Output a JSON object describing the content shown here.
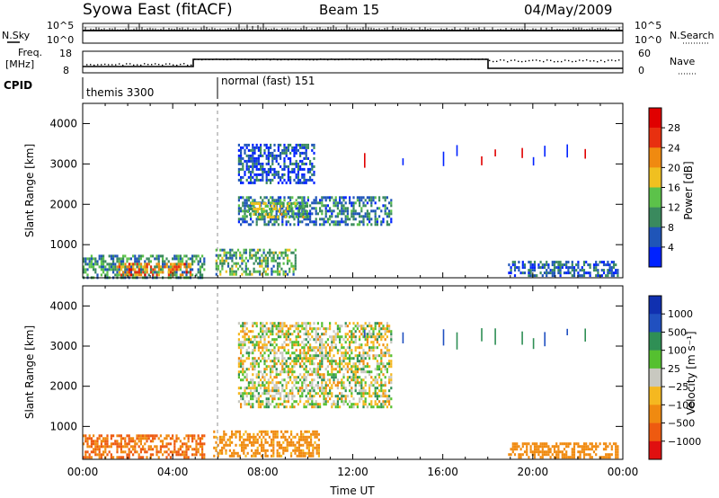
{
  "header": {
    "station": "Syowa East (fitACF)",
    "beam": "Beam 15",
    "date": "04/May/2009"
  },
  "noise_panel": {
    "left_label": "N.Sky",
    "right_label": "N.Search",
    "left_ticks": [
      "10^5",
      "10^0"
    ],
    "right_ticks": [
      "10^5",
      "10^0"
    ]
  },
  "freq_panel": {
    "left_label_1": "Freq.",
    "left_label_2": "[MHz]",
    "left_ticks": [
      "18",
      "8"
    ],
    "right_label": "Nave",
    "right_ticks": [
      "60",
      "0"
    ]
  },
  "cpid": {
    "label": "CPID",
    "segments": [
      {
        "name": "themis 3300",
        "start_hour": 0,
        "end_hour": 6
      },
      {
        "name": "normal (fast) 151",
        "start_hour": 6,
        "end_hour": 24
      }
    ]
  },
  "colors": {
    "power_scale": [
      "#0022ff",
      "#1f55b8",
      "#3a8a5e",
      "#5cc24a",
      "#f0c020",
      "#f08a10",
      "#e83010",
      "#e00000"
    ],
    "velocity_scale": [
      "#e01010",
      "#ee5a10",
      "#f08a10",
      "#f5b820",
      "#c8c8c0",
      "#55c030",
      "#2f8f55",
      "#2050c0",
      "#1030b0"
    ]
  },
  "chart_data": [
    {
      "type": "heatmap",
      "name": "power",
      "ylabel": "Slant Range [km]",
      "yticks": [
        "1000",
        "2000",
        "3000",
        "4000"
      ],
      "ylim": [
        180,
        4500
      ],
      "xticks": [
        "00:00",
        "04:00",
        "08:00",
        "12:00",
        "16:00",
        "20:00",
        "00:00"
      ],
      "xlim": [
        0,
        24
      ],
      "colorbar": {
        "label": "Power [dB]",
        "ticks": [
          "4",
          "8",
          "12",
          "16",
          "20",
          "24",
          "28"
        ],
        "range": [
          0,
          30
        ]
      },
      "regions": [
        {
          "x": [
            0.0,
            5.4
          ],
          "y": [
            200,
            750
          ],
          "power": 9
        },
        {
          "x": [
            1.5,
            4.8
          ],
          "y": [
            250,
            550
          ],
          "power": 22
        },
        {
          "x": [
            5.9,
            9.5
          ],
          "y": [
            250,
            900
          ],
          "power": 11
        },
        {
          "x": [
            6.9,
            10.3
          ],
          "y": [
            2500,
            3500
          ],
          "power": 5
        },
        {
          "x": [
            6.9,
            13.7
          ],
          "y": [
            1500,
            2200
          ],
          "power": 8
        },
        {
          "x": [
            7.3,
            10.0
          ],
          "y": [
            1650,
            2050
          ],
          "power": 14
        },
        {
          "x": [
            18.9,
            23.8
          ],
          "y": [
            250,
            600
          ],
          "power": 6
        }
      ]
    },
    {
      "type": "heatmap",
      "name": "velocity",
      "ylabel": "Slant Range [km]",
      "yticks": [
        "1000",
        "2000",
        "3000",
        "4000"
      ],
      "ylim": [
        180,
        4500
      ],
      "xticks": [
        "00:00",
        "04:00",
        "08:00",
        "12:00",
        "16:00",
        "20:00",
        "00:00"
      ],
      "xlim": [
        0,
        24
      ],
      "xlabel": "Time UT",
      "colorbar": {
        "label": "Velocity [m s⁻¹]",
        "ticks": [
          "1000",
          "500",
          "100",
          "25",
          "−25",
          "−100",
          "−500",
          "−1000"
        ]
      },
      "regions": [
        {
          "x": [
            0.0,
            5.4
          ],
          "y": [
            200,
            800
          ],
          "velocity": -300
        },
        {
          "x": [
            5.8,
            10.5
          ],
          "y": [
            250,
            900
          ],
          "velocity": -120
        },
        {
          "x": [
            6.9,
            13.7
          ],
          "y": [
            1500,
            3600
          ],
          "velocity": 0
        },
        {
          "x": [
            18.9,
            23.8
          ],
          "y": [
            250,
            600
          ],
          "velocity": -150
        }
      ]
    }
  ]
}
